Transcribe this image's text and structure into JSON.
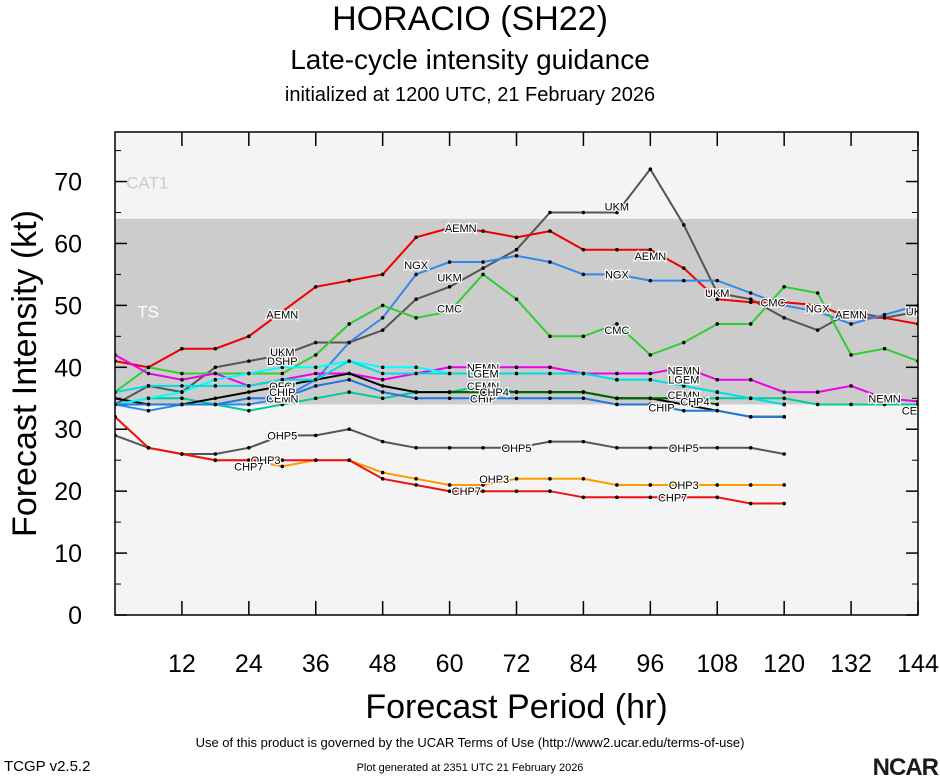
{
  "header": {
    "storm": "HORACIO (SH22)",
    "subtitle": "Late-cycle intensity guidance",
    "init": "initialized at 1200 UTC, 21 February 2026"
  },
  "footer": {
    "terms": "Use of this product is governed by the UCAR Terms of Use (http://www2.ucar.edu/terms-of-use)",
    "version": "TCGP v2.5.2",
    "generated": "Plot generated at 2351 UTC   21 February 2026",
    "logo": "NCAR"
  },
  "chart_data": {
    "type": "line",
    "xlabel": "Forecast Period (hr)",
    "ylabel": "Forecast Intensity (kt)",
    "xlim": [
      0,
      144
    ],
    "ylim": [
      0,
      78
    ],
    "xticks": [
      12,
      24,
      36,
      48,
      60,
      72,
      84,
      96,
      108,
      120,
      132,
      144
    ],
    "yticks": [
      0,
      10,
      20,
      30,
      40,
      50,
      60,
      70
    ],
    "bands": [
      {
        "label": "TS",
        "from": 34,
        "to": 64,
        "color": "#cccccc"
      },
      {
        "label": "CAT1",
        "from": 64,
        "to": 83,
        "color": "#f4f4f4"
      }
    ],
    "below_band_color": "#f4f4f4",
    "series": [
      {
        "name": "UKM",
        "color": "#555555",
        "x": [
          0,
          6,
          12,
          18,
          24,
          30,
          36,
          42,
          48,
          54,
          60,
          66,
          72,
          78,
          84,
          90,
          96,
          102,
          108,
          114,
          120,
          126,
          132,
          138,
          144
        ],
        "y": [
          34,
          37,
          36,
          40,
          41,
          42,
          44,
          44,
          46,
          51,
          53,
          56,
          59,
          65,
          65,
          65,
          72,
          63,
          52,
          51,
          48,
          46,
          49,
          48,
          49
        ],
        "labels": [
          {
            "x": 30,
            "y": 42.5
          },
          {
            "x": 60,
            "y": 54.5
          },
          {
            "x": 90,
            "y": 66
          },
          {
            "x": 108,
            "y": 52
          },
          {
            "x": 144,
            "y": 49
          }
        ]
      },
      {
        "name": "AEMN",
        "color": "#ee0000",
        "x": [
          0,
          6,
          12,
          18,
          24,
          30,
          36,
          42,
          48,
          54,
          60,
          66,
          72,
          78,
          84,
          90,
          96,
          102,
          108,
          114,
          120,
          126,
          132,
          138,
          144
        ],
        "y": [
          41,
          40,
          43,
          43,
          45,
          49,
          53,
          54,
          55,
          61,
          62.5,
          62,
          61,
          62,
          59,
          59,
          59,
          56,
          51,
          50.5,
          50.5,
          50,
          48,
          48,
          47
        ],
        "labels": [
          {
            "x": 30,
            "y": 48.5
          },
          {
            "x": 62,
            "y": 62.5
          },
          {
            "x": 96,
            "y": 58
          },
          {
            "x": 132,
            "y": 48.5
          }
        ]
      },
      {
        "name": "NGX",
        "color": "#3388ee",
        "x": [
          0,
          6,
          12,
          18,
          24,
          30,
          36,
          42,
          48,
          54,
          60,
          66,
          72,
          78,
          84,
          90,
          96,
          102,
          108,
          114,
          120,
          126,
          132,
          138,
          144
        ],
        "y": [
          34,
          33,
          34,
          34,
          34,
          35,
          38,
          44,
          48,
          55,
          57,
          57,
          58,
          57,
          55,
          55,
          54,
          54,
          54,
          52,
          50,
          49,
          47,
          48.5,
          50
        ],
        "labels": [
          {
            "x": 54,
            "y": 56.5
          },
          {
            "x": 90,
            "y": 55
          },
          {
            "x": 126,
            "y": 49.5
          }
        ]
      },
      {
        "name": "CMC",
        "color": "#33cc33",
        "x": [
          0,
          6,
          12,
          18,
          24,
          30,
          36,
          42,
          48,
          54,
          60,
          66,
          72,
          78,
          84,
          90,
          96,
          102,
          108,
          114,
          120,
          126,
          132,
          138,
          144
        ],
        "y": [
          36,
          40,
          39,
          39,
          39,
          39,
          42,
          47,
          50,
          48,
          49,
          55,
          51,
          45,
          45,
          47,
          42,
          44,
          47,
          47,
          53,
          52,
          42,
          43,
          41
        ],
        "labels": [
          {
            "x": 60,
            "y": 49.5
          },
          {
            "x": 90,
            "y": 46
          },
          {
            "x": 118,
            "y": 50.5
          }
        ]
      },
      {
        "name": "NEMN",
        "color": "#ee00ee",
        "x": [
          0,
          6,
          12,
          18,
          24,
          30,
          36,
          42,
          48,
          54,
          60,
          66,
          72,
          78,
          84,
          90,
          96,
          102,
          108,
          114,
          120,
          126,
          132,
          138,
          144
        ],
        "y": [
          42,
          39,
          38,
          39,
          37,
          38,
          39,
          39,
          38,
          39,
          40,
          40,
          40,
          40,
          39,
          39,
          39,
          40,
          38,
          38,
          36,
          36,
          37,
          35,
          34.5
        ],
        "labels": [
          {
            "x": 66,
            "y": 40
          },
          {
            "x": 102,
            "y": 39.5
          },
          {
            "x": 138,
            "y": 35
          }
        ]
      },
      {
        "name": "CEMN",
        "color": "#00cc99",
        "x": [
          0,
          6,
          12,
          18,
          24,
          30,
          36,
          42,
          48,
          54,
          60,
          66,
          72,
          78,
          84,
          90,
          96,
          102,
          108,
          114,
          120,
          126,
          132,
          138,
          144
        ],
        "y": [
          34,
          35,
          35,
          34,
          33,
          34,
          35,
          36,
          35,
          36,
          36,
          37,
          36,
          36,
          36,
          35,
          35,
          35,
          35,
          35,
          35,
          34,
          34,
          34,
          34
        ],
        "labels": [
          {
            "x": 30,
            "y": 35
          },
          {
            "x": 66,
            "y": 37
          },
          {
            "x": 102,
            "y": 35.5
          },
          {
            "x": 144,
            "y": 33
          }
        ]
      },
      {
        "name": "OFCI",
        "color": "#000000",
        "x": [
          0,
          6,
          12,
          18,
          24,
          30,
          36,
          42,
          48,
          54,
          60,
          66,
          72,
          78,
          84,
          90,
          96,
          102,
          108,
          114,
          120
        ],
        "y": [
          35,
          34,
          34,
          35,
          36,
          37,
          38,
          39,
          37,
          36,
          36,
          36,
          36,
          36,
          36,
          35,
          35,
          34,
          33,
          32,
          32
        ],
        "labels": [
          {
            "x": 30,
            "y": 37
          }
        ]
      },
      {
        "name": "DSHP",
        "color": "#00ffff",
        "x": [
          0,
          6,
          12,
          18,
          24,
          30,
          36,
          42,
          48,
          54,
          60,
          66,
          72,
          78,
          84,
          90,
          96,
          102,
          108,
          114,
          120
        ],
        "y": [
          34,
          35,
          36,
          38,
          39,
          40,
          40,
          41,
          40,
          40,
          39,
          39,
          39,
          39,
          39,
          38,
          38,
          37,
          36,
          35,
          34
        ],
        "labels": [
          {
            "x": 30,
            "y": 41
          }
        ]
      },
      {
        "name": "LGEM",
        "color": "#00dddd",
        "x": [
          0,
          6,
          12,
          18,
          24,
          30,
          36,
          42,
          48,
          54,
          60,
          66,
          72,
          78,
          84,
          90,
          96,
          102,
          108,
          114,
          120
        ],
        "y": [
          36,
          37,
          37,
          37,
          37,
          38,
          38,
          41,
          39,
          39,
          39,
          39,
          39,
          39,
          39,
          38,
          38,
          37,
          36,
          35,
          34
        ],
        "labels": [
          {
            "x": 66,
            "y": 39
          },
          {
            "x": 102,
            "y": 38
          }
        ]
      },
      {
        "name": "CHIP",
        "color": "#2277dd",
        "x": [
          0,
          6,
          12,
          18,
          24,
          30,
          36,
          42,
          48,
          54,
          60,
          66,
          72,
          78,
          84,
          90,
          96,
          102,
          108,
          114,
          120
        ],
        "y": [
          34,
          34,
          34,
          34,
          35,
          35,
          37,
          38,
          36,
          35,
          35,
          35,
          35,
          35,
          35,
          34,
          34,
          33,
          33,
          32,
          32
        ],
        "labels": [
          {
            "x": 30,
            "y": 36
          },
          {
            "x": 66,
            "y": 35
          },
          {
            "x": 98,
            "y": 33.5
          }
        ]
      },
      {
        "name": "CHP4",
        "color": "#006600",
        "x": [
          60,
          66,
          72,
          78,
          84,
          90,
          96,
          102,
          108
        ],
        "y": [
          36,
          36,
          36,
          36,
          36,
          35,
          35,
          35,
          34
        ],
        "labels": [
          {
            "x": 68,
            "y": 36
          },
          {
            "x": 104,
            "y": 34.5
          }
        ]
      },
      {
        "name": "OHP5",
        "color": "#555555",
        "x": [
          0,
          6,
          12,
          18,
          24,
          30,
          36,
          42,
          48,
          54,
          60,
          66,
          72,
          78,
          84,
          90,
          96,
          102,
          108,
          114,
          120
        ],
        "y": [
          29,
          27,
          26,
          26,
          27,
          29,
          29,
          30,
          28,
          27,
          27,
          27,
          27,
          28,
          28,
          27,
          27,
          27,
          27,
          27,
          26
        ],
        "labels": [
          {
            "x": 30,
            "y": 29
          },
          {
            "x": 72,
            "y": 27
          },
          {
            "x": 102,
            "y": 27
          }
        ]
      },
      {
        "name": "OHP3",
        "color": "#ff9900",
        "x": [
          0,
          6,
          12,
          18,
          24,
          30,
          36,
          42,
          48,
          54,
          60,
          66,
          72,
          78,
          84,
          90,
          96,
          102,
          108,
          114,
          120
        ],
        "y": [
          32,
          27,
          26,
          25,
          25,
          24,
          25,
          25,
          23,
          22,
          21,
          21,
          22,
          22,
          22,
          21,
          21,
          21,
          21,
          21,
          21
        ],
        "labels": [
          {
            "x": 27,
            "y": 25
          },
          {
            "x": 68,
            "y": 22
          },
          {
            "x": 102,
            "y": 21
          }
        ]
      },
      {
        "name": "CHP7",
        "color": "#ee1111",
        "x": [
          0,
          6,
          12,
          18,
          24,
          30,
          36,
          42,
          48,
          54,
          60,
          66,
          72,
          78,
          84,
          90,
          96,
          102,
          108,
          114,
          120
        ],
        "y": [
          32,
          27,
          26,
          25,
          25,
          25,
          25,
          25,
          22,
          21,
          20,
          20,
          20,
          20,
          19,
          19,
          19,
          19,
          19,
          18,
          18
        ],
        "labels": [
          {
            "x": 24,
            "y": 24
          },
          {
            "x": 63,
            "y": 20
          },
          {
            "x": 100,
            "y": 19
          }
        ]
      }
    ]
  }
}
